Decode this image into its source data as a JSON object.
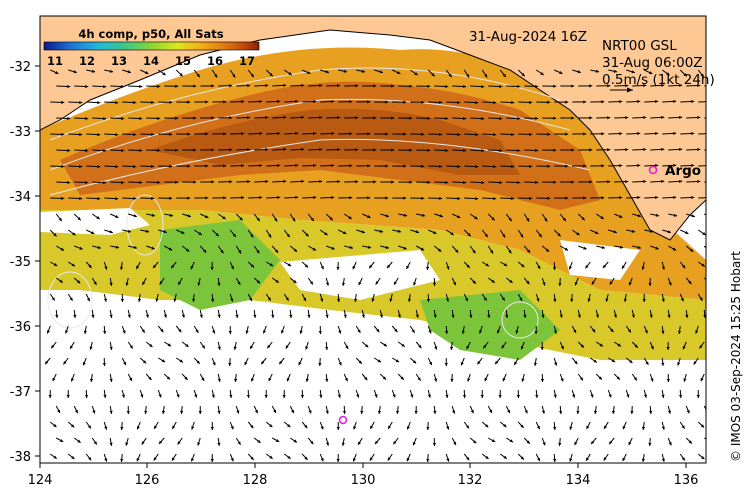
{
  "colorbar": {
    "title": "4h comp, p50, All Sats",
    "ticks": [
      "11",
      "12",
      "13",
      "14",
      "15",
      "16",
      "17"
    ],
    "colors": [
      "#0a1a8c",
      "#1e6fd8",
      "#22b8d8",
      "#3cc88a",
      "#8ad632",
      "#dde61e",
      "#f2b21a",
      "#e27812",
      "#c24a0c",
      "#8c1c06"
    ]
  },
  "timestamp": "31-Aug-2024 16Z",
  "currents": {
    "product": "NRT00 GSL",
    "time": "31-Aug 06:00Z",
    "scale": "0.5m/s (1kt 24h)"
  },
  "argo_label": "Argo",
  "credit": "© IMOS 03-Sep-2024 15:25 Hobart",
  "axes": {
    "x_ticks": [
      "124",
      "126",
      "128",
      "130",
      "132",
      "134",
      "136"
    ],
    "y_ticks": [
      "-32",
      "-33",
      "-34",
      "-35",
      "-36",
      "-37",
      "-38"
    ]
  },
  "colors": {
    "land": "#fdc893",
    "cloud": "#ffffff",
    "argo_marker": "#e020e0"
  },
  "legend_icons": [
    "current-scale-arrow-icon"
  ]
}
